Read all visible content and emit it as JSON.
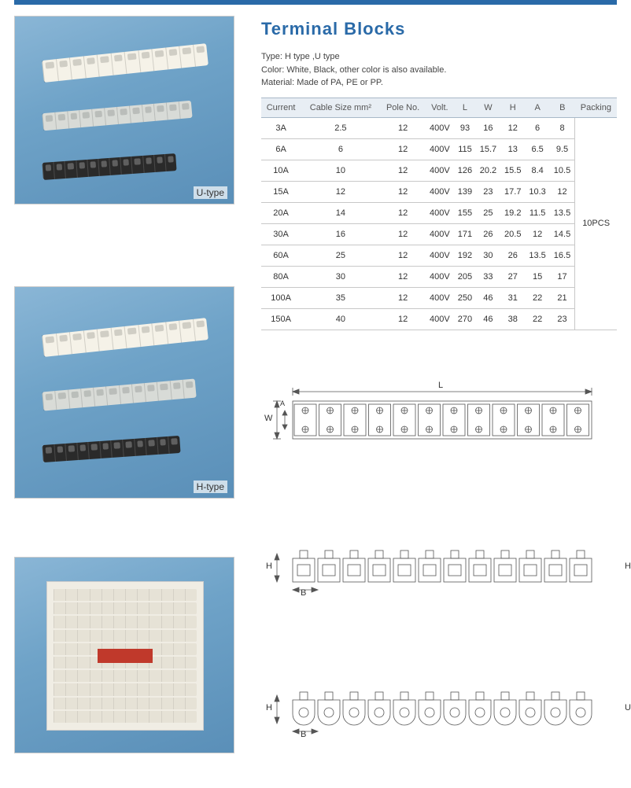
{
  "title": "Terminal  Blocks",
  "desc": {
    "type_label": "Type:",
    "type_value": "H type ,U type",
    "color_label": "Color:",
    "color_value": "White, Black,  other color is  also available.",
    "material_label": "Material:",
    "material_value": "Made of PA, PE or PP."
  },
  "photo_labels": {
    "u": "U-type",
    "h": "H-type"
  },
  "table": {
    "headers": [
      "Current",
      "Cable Size mm²",
      "Pole No.",
      "Volt.",
      "L",
      "W",
      "H",
      "A",
      "B",
      "Packing"
    ],
    "rows": [
      [
        "3A",
        "2.5",
        "12",
        "400V",
        "93",
        "16",
        "12",
        "6",
        "8"
      ],
      [
        "6A",
        "6",
        "12",
        "400V",
        "115",
        "15.7",
        "13",
        "6.5",
        "9.5"
      ],
      [
        "10A",
        "10",
        "12",
        "400V",
        "126",
        "20.2",
        "15.5",
        "8.4",
        "10.5"
      ],
      [
        "15A",
        "12",
        "12",
        "400V",
        "139",
        "23",
        "17.7",
        "10.3",
        "12"
      ],
      [
        "20A",
        "14",
        "12",
        "400V",
        "155",
        "25",
        "19.2",
        "11.5",
        "13.5"
      ],
      [
        "30A",
        "16",
        "12",
        "400V",
        "171",
        "26",
        "20.5",
        "12",
        "14.5"
      ],
      [
        "60A",
        "25",
        "12",
        "400V",
        "192",
        "30",
        "26",
        "13.5",
        "16.5"
      ],
      [
        "80A",
        "30",
        "12",
        "400V",
        "205",
        "33",
        "27",
        "15",
        "17"
      ],
      [
        "100A",
        "35",
        "12",
        "400V",
        "250",
        "46",
        "31",
        "22",
        "21"
      ],
      [
        "150A",
        "40",
        "12",
        "400V",
        "270",
        "46",
        "38",
        "22",
        "23"
      ]
    ],
    "packing": "10PCS"
  },
  "diagrams": {
    "top": {
      "L": "L",
      "W": "W",
      "A": "A"
    },
    "h": {
      "H": "H",
      "B": "B",
      "label": "H"
    },
    "u": {
      "H": "H",
      "B": "B",
      "label": "U"
    }
  },
  "colors": {
    "accent": "#2a6aa8",
    "header_bg": "#e8eef4",
    "border": "#c8c8c8",
    "text": "#333333"
  }
}
